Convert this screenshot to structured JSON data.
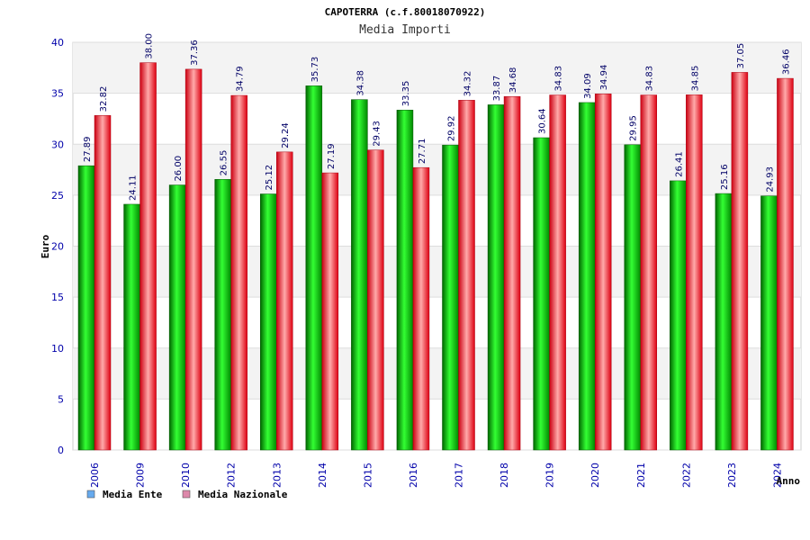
{
  "chart_data": {
    "type": "bar",
    "title": "CAPOTERRA (c.f.80018070922)",
    "subtitle": "Media Importi",
    "xlabel": "Anno",
    "ylabel": "Euro",
    "ylim": [
      0,
      40
    ],
    "yticks": [
      0,
      5,
      10,
      15,
      20,
      25,
      30,
      35,
      40
    ],
    "grid": true,
    "legend_position": "bottom-left",
    "categories": [
      "2006",
      "2009",
      "2010",
      "2012",
      "2013",
      "2014",
      "2015",
      "2016",
      "2017",
      "2018",
      "2019",
      "2020",
      "2021",
      "2022",
      "2023",
      "2024"
    ],
    "series": [
      {
        "name": "Media Ente",
        "color": "#00aa00",
        "legend_color": "#66aaee",
        "values": [
          27.89,
          24.11,
          26.0,
          26.55,
          25.12,
          35.73,
          34.38,
          33.35,
          29.92,
          33.87,
          30.64,
          34.09,
          29.95,
          26.41,
          25.16,
          24.93
        ],
        "labels": [
          "27.89",
          "24.11",
          "26.00",
          "26.55",
          "25.12",
          "35.73",
          "34.38",
          "33.35",
          "29.92",
          "33.87",
          "30.64",
          "34.09",
          "29.95",
          "26.41",
          "25.16",
          "24.93"
        ]
      },
      {
        "name": "Media Nazionale",
        "color": "#ee1122",
        "legend_color": "#dd88aa",
        "values": [
          32.82,
          38.0,
          37.36,
          34.79,
          29.24,
          27.19,
          29.43,
          27.71,
          34.32,
          34.68,
          34.83,
          34.94,
          34.83,
          34.85,
          37.05,
          36.46
        ],
        "labels": [
          "32.82",
          "38.00",
          "37.36",
          "34.79",
          "29.24",
          "27.19",
          "29.43",
          "27.71",
          "34.32",
          "34.68",
          "34.83",
          "34.94",
          "34.83",
          "34.85",
          "37.05",
          "36.46"
        ]
      }
    ]
  }
}
